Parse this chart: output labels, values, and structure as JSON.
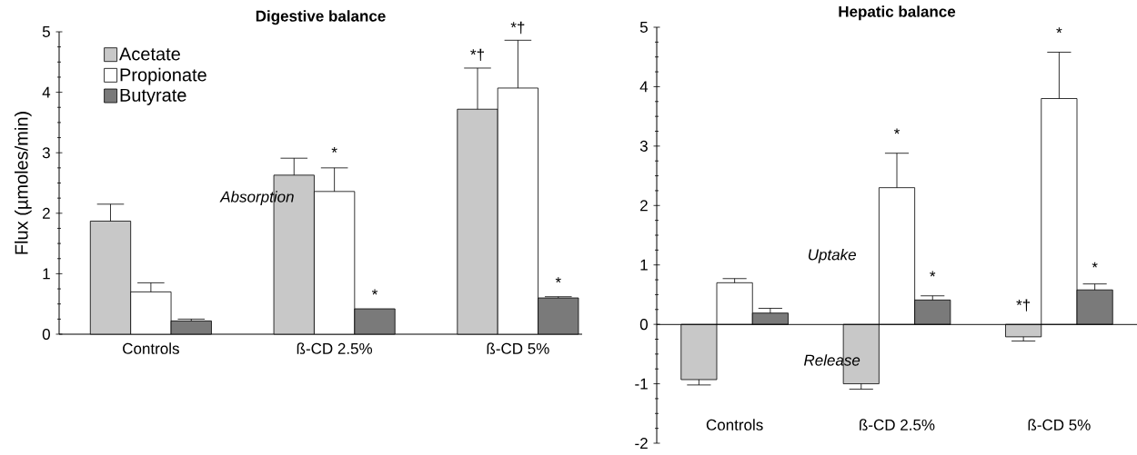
{
  "chart_data": [
    {
      "type": "bar",
      "title": "Digestive balance",
      "ylabel": "Flux (µmoles/min)",
      "categories": [
        "Controls",
        "ß-CD 2.5%",
        "ß-CD 5%"
      ],
      "series": [
        {
          "name": "Acetate",
          "color": "#c8c8c8",
          "values": [
            1.87,
            2.63,
            3.72
          ],
          "errors": [
            [
              1.87,
              2.15
            ],
            [
              2.63,
              2.91
            ],
            [
              3.72,
              4.4
            ]
          ]
        },
        {
          "name": "Propionate",
          "color": "#ffffff",
          "values": [
            0.7,
            2.36,
            4.07
          ],
          "errors": [
            [
              0.7,
              0.85
            ],
            [
              2.36,
              2.75
            ],
            [
              4.07,
              4.86
            ]
          ]
        },
        {
          "name": "Butyrate",
          "color": "#7a7a7a",
          "values": [
            0.22,
            0.42,
            0.6
          ],
          "errors": [
            [
              0.22,
              0.25
            ],
            null,
            [
              0.6,
              0.62
            ]
          ]
        }
      ],
      "ylim": [
        0,
        5
      ],
      "yticks": [
        0,
        1,
        2,
        3,
        4,
        5
      ],
      "legend": "top left",
      "annotations": [
        "Absorption",
        "*",
        "*",
        "*†",
        "*†",
        "*"
      ]
    },
    {
      "type": "bar",
      "title": "Hepatic balance",
      "categories": [
        "Controls",
        "ß-CD 2.5%",
        "ß-CD 5%"
      ],
      "series": [
        {
          "color": "#c8c8c8",
          "values": [
            -0.93,
            -1.0,
            -0.21
          ],
          "errors": [
            [
              -1.02,
              -0.93
            ],
            [
              -1.09,
              -1.0
            ],
            [
              -0.28,
              -0.21
            ]
          ]
        },
        {
          "color": "#ffffff",
          "values": [
            0.7,
            2.3,
            3.8
          ],
          "errors": [
            [
              0.7,
              0.77
            ],
            [
              2.3,
              2.88
            ],
            [
              3.8,
              4.58
            ]
          ]
        },
        {
          "color": "#7a7a7a",
          "values": [
            0.19,
            0.41,
            0.58
          ],
          "errors": [
            [
              0.19,
              0.27
            ],
            [
              0.41,
              0.48
            ],
            [
              0.58,
              0.68
            ]
          ]
        }
      ],
      "ylim": [
        -2,
        5
      ],
      "yticks": [
        -2,
        -1,
        0,
        1,
        2,
        3,
        4,
        5
      ],
      "annotations": [
        "Uptake",
        "Release",
        "*",
        "*",
        "*",
        "*",
        "*†"
      ]
    }
  ]
}
